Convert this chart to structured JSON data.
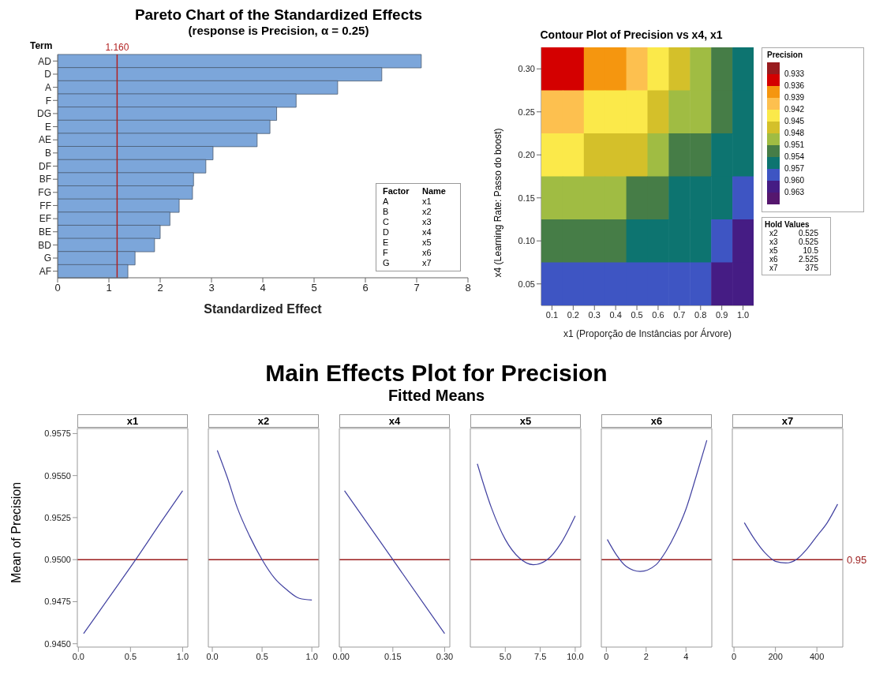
{
  "chart_data": [
    {
      "type": "bar",
      "orientation": "horizontal",
      "title": "Pareto Chart of the Standardized Effects",
      "subtitle": "(response is Precision, α = 0.25)",
      "xlabel": "Standardized Effect",
      "ylabel": "Term",
      "categories": [
        "AD",
        "D",
        "A",
        "F",
        "DG",
        "E",
        "AE",
        "B",
        "DF",
        "BF",
        "FG",
        "FF",
        "EF",
        "BE",
        "BD",
        "G",
        "AF"
      ],
      "values": [
        7.09,
        6.32,
        5.46,
        4.65,
        4.27,
        4.14,
        3.89,
        3.03,
        2.89,
        2.65,
        2.63,
        2.37,
        2.19,
        2.0,
        1.89,
        1.51,
        1.37
      ],
      "color": "#7ca6da",
      "xlim": [
        0,
        8
      ],
      "xticks": [
        0,
        1,
        2,
        3,
        4,
        5,
        6,
        7,
        8
      ],
      "ref_lines": [
        {
          "axis": "x",
          "value": 1.16,
          "label": "1.160",
          "color": "#b22222"
        }
      ],
      "annotations": [
        "Factor",
        "Name",
        "A",
        "x1",
        "B",
        "x2",
        "C",
        "x3",
        "D",
        "x4",
        "E",
        "x5",
        "F",
        "x6",
        "G",
        "x7"
      ]
    },
    {
      "type": "heatmap",
      "title": "Contour Plot of Precision vs x4, x1",
      "xlabel": "x1 (Proporção de Instâncias por Árvore)",
      "ylabel": "x4 (Learning Rate: Passo do boost)",
      "clabel": "Precision",
      "categories": [
        "0.1",
        "0.2",
        "0.3",
        "0.4",
        "0.5",
        "0.6",
        "0.7",
        "0.8",
        "0.9",
        "1.0"
      ],
      "y_categories": [
        "0.30",
        "0.25",
        "0.20",
        "0.15",
        "0.10",
        "0.05"
      ],
      "cells": [
        [
          0.9345,
          0.9345,
          0.9375,
          0.9375,
          0.9405,
          0.9435,
          0.9465,
          0.9495,
          0.9525,
          0.9555
        ],
        [
          0.9405,
          0.9405,
          0.9435,
          0.9435,
          0.9435,
          0.9465,
          0.9495,
          0.9495,
          0.9525,
          0.9555
        ],
        [
          0.9435,
          0.9435,
          0.9465,
          0.9465,
          0.9465,
          0.9495,
          0.9525,
          0.9525,
          0.9555,
          0.9555
        ],
        [
          0.9495,
          0.9495,
          0.9495,
          0.9495,
          0.9525,
          0.9525,
          0.9555,
          0.9555,
          0.9555,
          0.9585
        ],
        [
          0.9525,
          0.9525,
          0.9525,
          0.9525,
          0.9555,
          0.9555,
          0.9555,
          0.9555,
          0.9585,
          0.9615
        ],
        [
          0.9585,
          0.9585,
          0.9585,
          0.9585,
          0.9585,
          0.9585,
          0.9585,
          0.9585,
          0.9615,
          0.9615
        ]
      ],
      "clim": [
        0.93,
        0.966
      ],
      "cticks": [
        0.933,
        0.936,
        0.939,
        0.942,
        0.945,
        0.948,
        0.951,
        0.954,
        0.957,
        {
          "value": 0.96,
          "label": "0.960"
        },
        0.963
      ],
      "colors": [
        "#981b1e",
        "#d40000",
        "#f5960f",
        "#fdc04f",
        "#fbe94a",
        "#d4c02a",
        "#a0bc43",
        "#467d47",
        "#0d7470",
        "#3e55c3",
        "#451c84",
        "#55176e"
      ],
      "annotations": [
        "Hold Values",
        "x2",
        "0.525",
        "x3",
        "0.525",
        "x5",
        "10.5",
        "x6",
        "2.525",
        "x7",
        "375"
      ]
    },
    {
      "type": "line",
      "ylabel": "Mean of Precision",
      "xlabel": "x1",
      "x": [
        0.05,
        0.3,
        0.55,
        0.8,
        1.0
      ],
      "values": [
        0.9456,
        0.9478,
        0.95,
        0.9523,
        0.9541
      ],
      "color": "#4040a0",
      "xlim": [
        -0.01,
        1.05
      ],
      "xticks": [
        {
          "value": 0,
          "label": "0.0"
        },
        0.5,
        {
          "value": 1,
          "label": "1.0"
        }
      ],
      "ylim": [
        0.9448,
        0.9578
      ],
      "yticks": [
        {
          "value": 0.945,
          "label": "0.9450"
        },
        0.9475,
        {
          "value": 0.95,
          "label": "0.9500"
        },
        0.9525,
        {
          "value": 0.955,
          "label": "0.9550"
        },
        0.9575
      ],
      "ref_lines": [
        {
          "axis": "y",
          "value": 0.95,
          "color": "#9b1c1c"
        }
      ]
    },
    {
      "type": "line",
      "xlabel": "x2",
      "x": [
        0.05,
        0.15,
        0.25,
        0.375,
        0.5,
        0.625,
        0.75,
        0.875,
        1.0
      ],
      "values": [
        0.9565,
        0.9549,
        0.9531,
        0.9514,
        0.95,
        0.9489,
        0.9482,
        0.9477,
        0.9476
      ],
      "color": "#4040a0",
      "xlim": [
        -0.04,
        1.07
      ],
      "xticks": [
        {
          "value": 0,
          "label": "0.0"
        },
        0.5,
        {
          "value": 1,
          "label": "1.0"
        }
      ],
      "ylim": [
        0.9448,
        0.9578
      ],
      "tick_labels": "x",
      "ref_lines": [
        {
          "axis": "y",
          "value": 0.95,
          "color": "#9b1c1c"
        }
      ]
    },
    {
      "type": "line",
      "title": "Main Effects Plot for Precision",
      "subtitle": "Fitted Means",
      "xlabel": "x4",
      "x": [
        0.01,
        0.15,
        0.3
      ],
      "values": [
        0.9541,
        0.95,
        0.9456
      ],
      "color": "#4040a0",
      "xlim": [
        -0.005,
        0.315
      ],
      "xticks": [
        {
          "value": 0,
          "label": "0.00"
        },
        0.15,
        {
          "value": 0.3,
          "label": "0.30"
        }
      ],
      "ylim": [
        0.9448,
        0.9578
      ],
      "tick_labels": "x",
      "ref_lines": [
        {
          "axis": "y",
          "value": 0.95,
          "color": "#9b1c1c"
        }
      ]
    },
    {
      "type": "line",
      "xlabel": "x5",
      "x": [
        3,
        4,
        5,
        6,
        7,
        8,
        9,
        10
      ],
      "values": [
        0.9557,
        0.9531,
        0.9512,
        0.9501,
        0.9497,
        0.95,
        0.951,
        0.9526
      ],
      "color": "#4040a0",
      "xlim": [
        2.5,
        10.4
      ],
      "xticks": [
        {
          "value": 5,
          "label": "5.0"
        },
        7.5,
        {
          "value": 10,
          "label": "10.0"
        }
      ],
      "ylim": [
        0.9448,
        0.9578
      ],
      "tick_labels": "x",
      "ref_lines": [
        {
          "axis": "y",
          "value": 0.95,
          "color": "#9b1c1c"
        }
      ]
    },
    {
      "type": "line",
      "xlabel": "x6",
      "x": [
        0.05,
        0.5,
        1,
        1.7,
        2.5,
        3,
        3.5,
        4,
        4.5,
        5.05
      ],
      "values": [
        0.9512,
        0.9503,
        0.9496,
        0.9493,
        0.9497,
        0.9505,
        0.9516,
        0.953,
        0.9549,
        0.9571
      ],
      "color": "#4040a0",
      "xlim": [
        -0.25,
        5.3
      ],
      "xticks": [
        0,
        2,
        4
      ],
      "ylim": [
        0.9448,
        0.9578
      ],
      "tick_labels": "x",
      "ref_lines": [
        {
          "axis": "y",
          "value": 0.95,
          "color": "#9b1c1c"
        }
      ]
    },
    {
      "type": "line",
      "xlabel": "x7",
      "x": [
        50,
        100,
        150,
        200,
        250,
        300,
        350,
        400,
        450,
        500
      ],
      "values": [
        0.9522,
        0.9512,
        0.9504,
        0.9499,
        0.9498,
        0.95,
        0.9506,
        0.9514,
        0.9522,
        0.9533
      ],
      "color": "#4040a0",
      "xlim": [
        -8,
        525
      ],
      "xticks": [
        0,
        200,
        400
      ],
      "ylim": [
        0.9448,
        0.9578
      ],
      "tick_labels": "x",
      "ref_lines": [
        {
          "axis": "y",
          "value": 0.95,
          "label": "0.95",
          "color": "#9b1c1c"
        }
      ]
    }
  ]
}
